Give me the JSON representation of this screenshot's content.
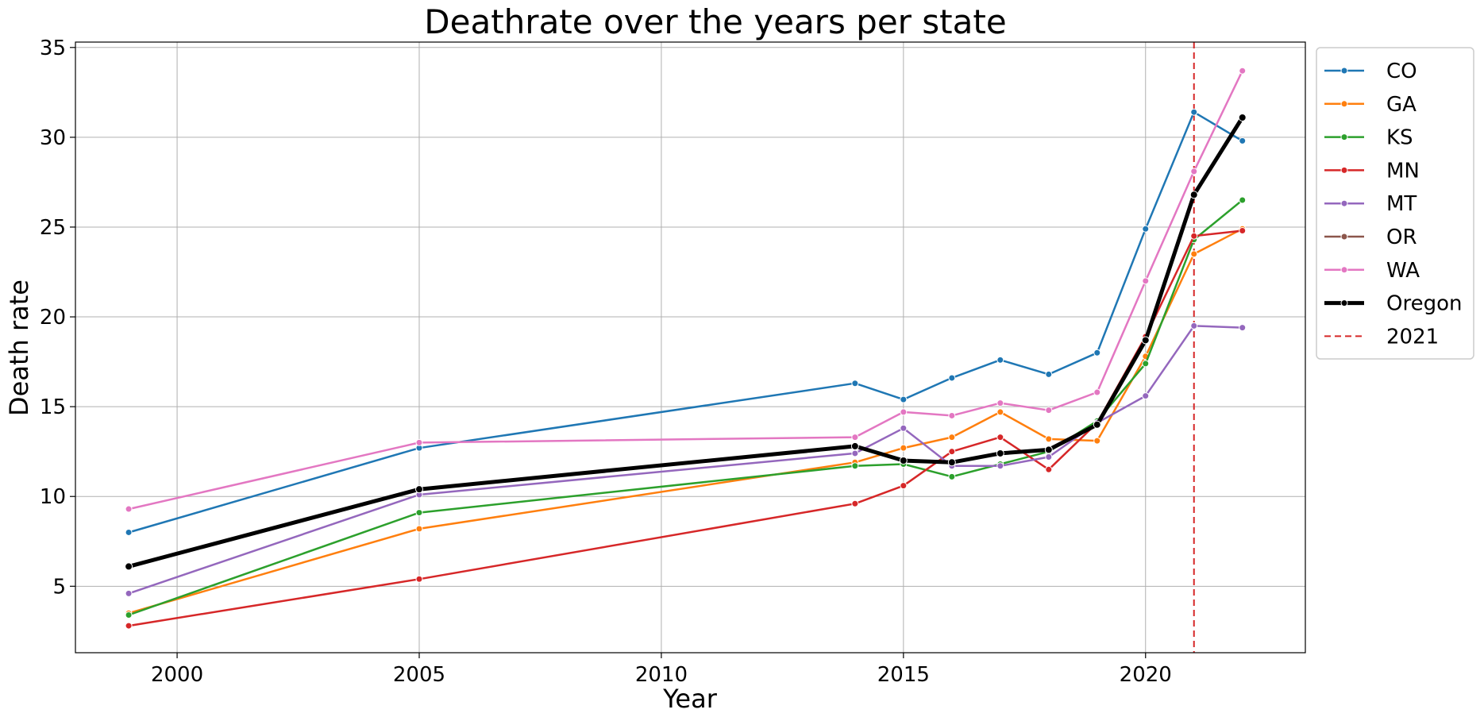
{
  "chart_data": {
    "type": "line",
    "title": "Deathrate over the years per state",
    "xlabel": "Year",
    "ylabel": "Death rate",
    "xlim": [
      1997.9,
      2023.3
    ],
    "ylim": [
      1.3,
      35.3
    ],
    "xticks": [
      2000,
      2005,
      2010,
      2015,
      2020
    ],
    "xtick_labels": [
      "2000",
      "2005",
      "2010",
      "2015",
      "2020"
    ],
    "yticks": [
      5,
      10,
      15,
      20,
      25,
      30,
      35
    ],
    "ytick_labels": [
      "5",
      "10",
      "15",
      "20",
      "25",
      "30",
      "35"
    ],
    "grid": true,
    "legend_position": "outside-right-top",
    "x": [
      1999,
      2005,
      2014,
      2015,
      2016,
      2017,
      2018,
      2019,
      2020,
      2021,
      2022
    ],
    "series": [
      {
        "name": "CO",
        "color": "#1f77b4",
        "values": [
          8.0,
          12.7,
          16.3,
          15.4,
          16.6,
          17.6,
          16.8,
          18.0,
          24.9,
          31.4,
          29.8
        ]
      },
      {
        "name": "GA",
        "color": "#ff7f0e",
        "values": [
          3.5,
          8.2,
          11.9,
          12.7,
          13.3,
          14.7,
          13.2,
          13.1,
          17.8,
          23.5,
          24.9
        ]
      },
      {
        "name": "KS",
        "color": "#2ca02c",
        "values": [
          3.4,
          9.1,
          11.7,
          11.8,
          11.1,
          11.8,
          12.5,
          14.2,
          17.4,
          24.3,
          26.5
        ]
      },
      {
        "name": "MN",
        "color": "#d62728",
        "values": [
          2.8,
          5.4,
          9.6,
          10.6,
          12.5,
          13.3,
          11.5,
          14.1,
          18.9,
          24.5,
          24.8
        ]
      },
      {
        "name": "MT",
        "color": "#9467bd",
        "values": [
          4.6,
          10.1,
          12.4,
          13.8,
          11.7,
          11.7,
          12.2,
          14.1,
          15.6,
          19.5,
          19.4
        ]
      },
      {
        "name": "OR",
        "color": "#8c564b",
        "values": [
          6.1,
          10.4,
          12.8,
          12.0,
          11.9,
          12.4,
          12.6,
          14.0,
          18.7,
          26.8,
          31.1
        ]
      },
      {
        "name": "WA",
        "color": "#e377c2",
        "values": [
          9.3,
          13.0,
          13.3,
          14.7,
          14.5,
          15.2,
          14.8,
          15.8,
          22.0,
          28.1,
          33.7
        ]
      },
      {
        "name": "Oregon",
        "color": "#000000",
        "highlight": true,
        "values": [
          6.1,
          10.4,
          12.8,
          12.0,
          11.9,
          12.4,
          12.6,
          14.0,
          18.7,
          26.8,
          31.1
        ]
      }
    ],
    "vline": {
      "x": 2021,
      "label": "2021",
      "color": "#d62728",
      "style": "dashed"
    }
  }
}
